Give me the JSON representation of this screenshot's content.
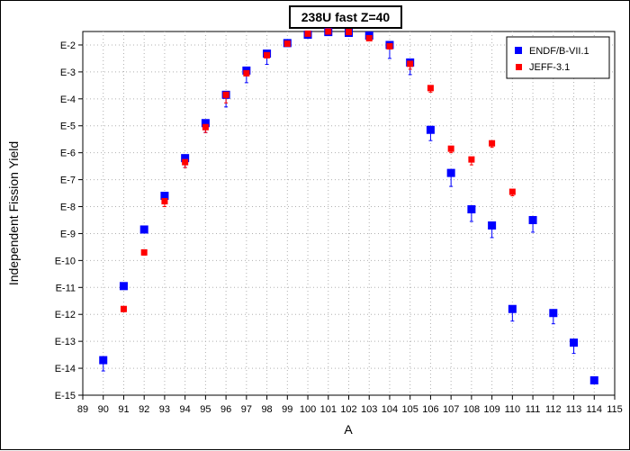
{
  "chart_data": {
    "type": "scatter",
    "title": "238U fast Z=40",
    "xlabel": "A",
    "ylabel": "Independent Fission Yield",
    "xlim": [
      89,
      115
    ],
    "ylim_exponent": [
      -15,
      -1.5
    ],
    "y_scale": "log",
    "x_ticks": [
      "89",
      "90",
      "91",
      "92",
      "93",
      "94",
      "95",
      "96",
      "97",
      "98",
      "99",
      "100",
      "101",
      "102",
      "103",
      "104",
      "105",
      "106",
      "107",
      "108",
      "109",
      "110",
      "111",
      "112",
      "113",
      "114",
      "115"
    ],
    "y_ticks": [
      {
        "exp": -2,
        "label": "E-2"
      },
      {
        "exp": -3,
        "label": "E-3"
      },
      {
        "exp": -4,
        "label": "E-4"
      },
      {
        "exp": -5,
        "label": "E-5"
      },
      {
        "exp": -6,
        "label": "E-6"
      },
      {
        "exp": -7,
        "label": "E-7"
      },
      {
        "exp": -8,
        "label": "E-8"
      },
      {
        "exp": -9,
        "label": "E-9"
      },
      {
        "exp": -10,
        "label": "E-10"
      },
      {
        "exp": -11,
        "label": "E-11"
      },
      {
        "exp": -12,
        "label": "E-12"
      },
      {
        "exp": -13,
        "label": "E-13"
      },
      {
        "exp": -14,
        "label": "E-14"
      },
      {
        "exp": -15,
        "label": "E-15"
      }
    ],
    "grid": true,
    "legend_position": "top-right",
    "series": [
      {
        "name": "ENDF/B-VII.1",
        "color": "#0000ff",
        "marker": "square",
        "points": [
          {
            "x": 90,
            "log10_y": -13.7,
            "err_lo": 0.4,
            "err_hi": 0.1
          },
          {
            "x": 91,
            "log10_y": -10.95,
            "err_lo": 0.1,
            "err_hi": 0.05
          },
          {
            "x": 92,
            "log10_y": -8.85,
            "err_lo": 0.1,
            "err_hi": 0.05
          },
          {
            "x": 93,
            "log10_y": -7.6,
            "err_lo": 0.2,
            "err_hi": 0.1
          },
          {
            "x": 94,
            "log10_y": -6.2,
            "err_lo": 0.35,
            "err_hi": 0.1
          },
          {
            "x": 95,
            "log10_y": -4.9,
            "err_lo": 0.35,
            "err_hi": 0.1
          },
          {
            "x": 96,
            "log10_y": -3.85,
            "err_lo": 0.45,
            "err_hi": 0.1
          },
          {
            "x": 97,
            "log10_y": -2.95,
            "err_lo": 0.45,
            "err_hi": 0.1
          },
          {
            "x": 98,
            "log10_y": -2.32,
            "err_lo": 0.4,
            "err_hi": 0.1
          },
          {
            "x": 99,
            "log10_y": -1.93,
            "err_lo": 0.05,
            "err_hi": 0.05
          },
          {
            "x": 100,
            "log10_y": -1.62,
            "err_lo": 0.05,
            "err_hi": 0.05
          },
          {
            "x": 101,
            "log10_y": -1.52,
            "err_lo": 0.05,
            "err_hi": 0.05
          },
          {
            "x": 102,
            "log10_y": -1.55,
            "err_lo": 0.05,
            "err_hi": 0.05
          },
          {
            "x": 103,
            "log10_y": -1.65,
            "err_lo": 0.05,
            "err_hi": 0.05
          },
          {
            "x": 104,
            "log10_y": -2.0,
            "err_lo": 0.5,
            "err_hi": 0.1
          },
          {
            "x": 105,
            "log10_y": -2.65,
            "err_lo": 0.45,
            "err_hi": 0.1
          },
          {
            "x": 106,
            "log10_y": -5.15,
            "err_lo": 0.4,
            "err_hi": 0.1
          },
          {
            "x": 107,
            "log10_y": -6.75,
            "err_lo": 0.5,
            "err_hi": 0.1
          },
          {
            "x": 108,
            "log10_y": -8.1,
            "err_lo": 0.45,
            "err_hi": 0.1
          },
          {
            "x": 109,
            "log10_y": -8.7,
            "err_lo": 0.45,
            "err_hi": 0.1
          },
          {
            "x": 110,
            "log10_y": -11.8,
            "err_lo": 0.45,
            "err_hi": 0.1
          },
          {
            "x": 111,
            "log10_y": -8.5,
            "err_lo": 0.45,
            "err_hi": 0.1
          },
          {
            "x": 112,
            "log10_y": -11.95,
            "err_lo": 0.4,
            "err_hi": 0.1
          },
          {
            "x": 113,
            "log10_y": -13.05,
            "err_lo": 0.4,
            "err_hi": 0.1
          },
          {
            "x": 114,
            "log10_y": -14.45,
            "err_lo": 0.05,
            "err_hi": 0.05
          }
        ]
      },
      {
        "name": "JEFF-3.1",
        "color": "#ff0000",
        "marker": "square",
        "points": [
          {
            "x": 91,
            "log10_y": -11.8,
            "err_lo": 0.1,
            "err_hi": 0.05
          },
          {
            "x": 92,
            "log10_y": -9.7,
            "err_lo": 0.1,
            "err_hi": 0.05
          },
          {
            "x": 93,
            "log10_y": -7.8,
            "err_lo": 0.2,
            "err_hi": 0.05
          },
          {
            "x": 94,
            "log10_y": -6.35,
            "err_lo": 0.2,
            "err_hi": 0.05
          },
          {
            "x": 95,
            "log10_y": -5.05,
            "err_lo": 0.2,
            "err_hi": 0.05
          },
          {
            "x": 96,
            "log10_y": -3.85,
            "err_lo": 0.3,
            "err_hi": 0.05
          },
          {
            "x": 97,
            "log10_y": -3.05,
            "err_lo": 0.1,
            "err_hi": 0.05
          },
          {
            "x": 98,
            "log10_y": -2.38,
            "err_lo": 0.1,
            "err_hi": 0.05
          },
          {
            "x": 99,
            "log10_y": -1.95,
            "err_lo": 0.05,
            "err_hi": 0.05
          },
          {
            "x": 100,
            "log10_y": -1.58,
            "err_lo": 0.05,
            "err_hi": 0.05
          },
          {
            "x": 101,
            "log10_y": -1.5,
            "err_lo": 0.05,
            "err_hi": 0.05
          },
          {
            "x": 102,
            "log10_y": -1.52,
            "err_lo": 0.05,
            "err_hi": 0.05
          },
          {
            "x": 103,
            "log10_y": -1.75,
            "err_lo": 0.05,
            "err_hi": 0.05
          },
          {
            "x": 104,
            "log10_y": -2.05,
            "err_lo": 0.1,
            "err_hi": 0.05
          },
          {
            "x": 105,
            "log10_y": -2.7,
            "err_lo": 0.2,
            "err_hi": 0.05
          },
          {
            "x": 106,
            "log10_y": -3.6,
            "err_lo": 0.15,
            "err_hi": 0.05
          },
          {
            "x": 107,
            "log10_y": -5.85,
            "err_lo": 0.15,
            "err_hi": 0.05
          },
          {
            "x": 108,
            "log10_y": -6.25,
            "err_lo": 0.2,
            "err_hi": 0.05
          },
          {
            "x": 109,
            "log10_y": -5.65,
            "err_lo": 0.15,
            "err_hi": 0.05
          },
          {
            "x": 110,
            "log10_y": -7.45,
            "err_lo": 0.15,
            "err_hi": 0.05
          }
        ]
      }
    ]
  }
}
